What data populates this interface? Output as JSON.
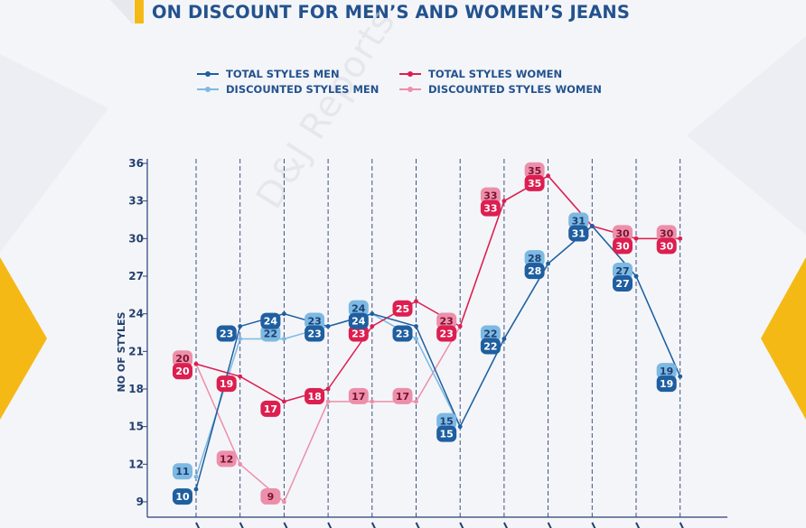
{
  "title": "ON DISCOUNT FOR MEN’S AND WOMEN’S JEANS",
  "watermark": "D&J Reports",
  "colors": {
    "total_men": "#1f5fa0",
    "discounted_men": "#7db9e2",
    "total_women": "#dc1f50",
    "discounted_women": "#ec8fab",
    "accent": "#f5b915",
    "title": "#23528e"
  },
  "chart_data": {
    "type": "line",
    "ylabel": "NO OF STYLES",
    "xlabel": "",
    "ylim": [
      8,
      36
    ],
    "yticks": [
      9,
      12,
      15,
      18,
      21,
      24,
      27,
      30,
      33,
      36
    ],
    "grid": "vertical dashed",
    "legend_position": "top",
    "x": [
      1,
      2,
      3,
      4,
      5,
      6,
      7,
      8,
      9,
      10,
      11,
      12
    ],
    "series": [
      {
        "name": "TOTAL STYLES MEN",
        "key": "total_men",
        "values": [
          10,
          23,
          24,
          23,
          24,
          23,
          15,
          22,
          28,
          31,
          27,
          19
        ]
      },
      {
        "name": "DISCOUNTED STYLES MEN",
        "key": "discounted_men",
        "values": [
          11,
          22,
          22,
          23,
          24,
          22,
          15,
          22,
          28,
          31,
          27,
          19
        ]
      },
      {
        "name": "TOTAL STYLES WOMEN",
        "key": "total_women",
        "values": [
          20,
          19,
          17,
          18,
          23,
          25,
          23,
          33,
          35,
          31,
          30,
          30
        ]
      },
      {
        "name": "DISCOUNTED STYLES WOMEN",
        "key": "discounted_women",
        "values": [
          20,
          12,
          9,
          17,
          17,
          17,
          23,
          33,
          35,
          31,
          30,
          30
        ]
      }
    ]
  }
}
